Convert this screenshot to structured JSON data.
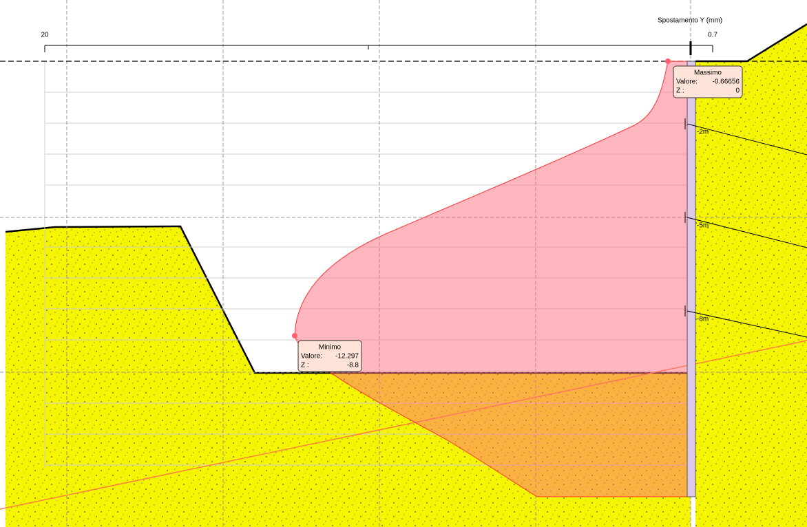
{
  "axis": {
    "label": "Spostamento Y (mm)",
    "left_value": "20",
    "right_value": "0.7"
  },
  "minimum": {
    "title": "Minimo",
    "value_label": "Valore:",
    "value": "-12.297",
    "z_label": "Z :",
    "z": "-8.8"
  },
  "maximum": {
    "title": "Massimo",
    "value_label": "Valore:",
    "value": "-0.66656",
    "z_label": "Z :",
    "z": "0"
  },
  "anchors": [
    "-2m",
    "-5m",
    "-8m"
  ]
}
